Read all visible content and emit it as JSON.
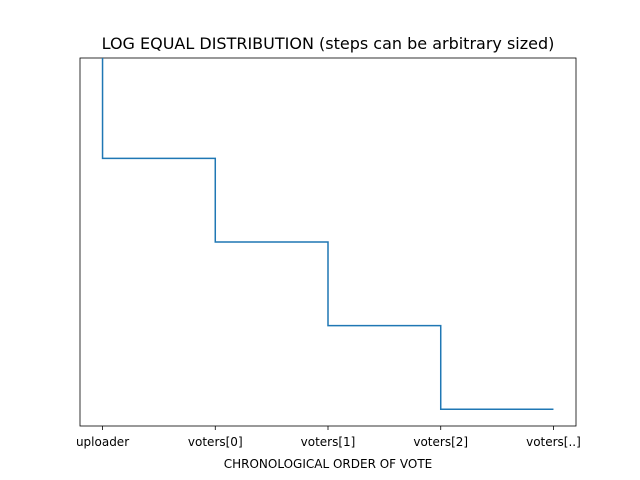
{
  "chart_data": {
    "type": "line",
    "drawstyle": "steps-pre",
    "title": "LOG EQUAL DISTRIBUTION (steps can be arbitrary sized)",
    "xlabel": "CHRONOLOGICAL ORDER OF VOTE",
    "ylabel": "",
    "categories": [
      "uploader",
      "voters[0]",
      "voters[1]",
      "voters[2]",
      "voters[..]"
    ],
    "x": [
      0,
      1,
      2,
      3,
      4
    ],
    "series": [
      {
        "values": [
          5,
          4,
          3,
          2,
          1
        ],
        "color": "#1f77b4"
      }
    ],
    "ylim": [
      0.8,
      5.2
    ],
    "y_ticks_visible": false,
    "grid": false,
    "legend": "none"
  }
}
